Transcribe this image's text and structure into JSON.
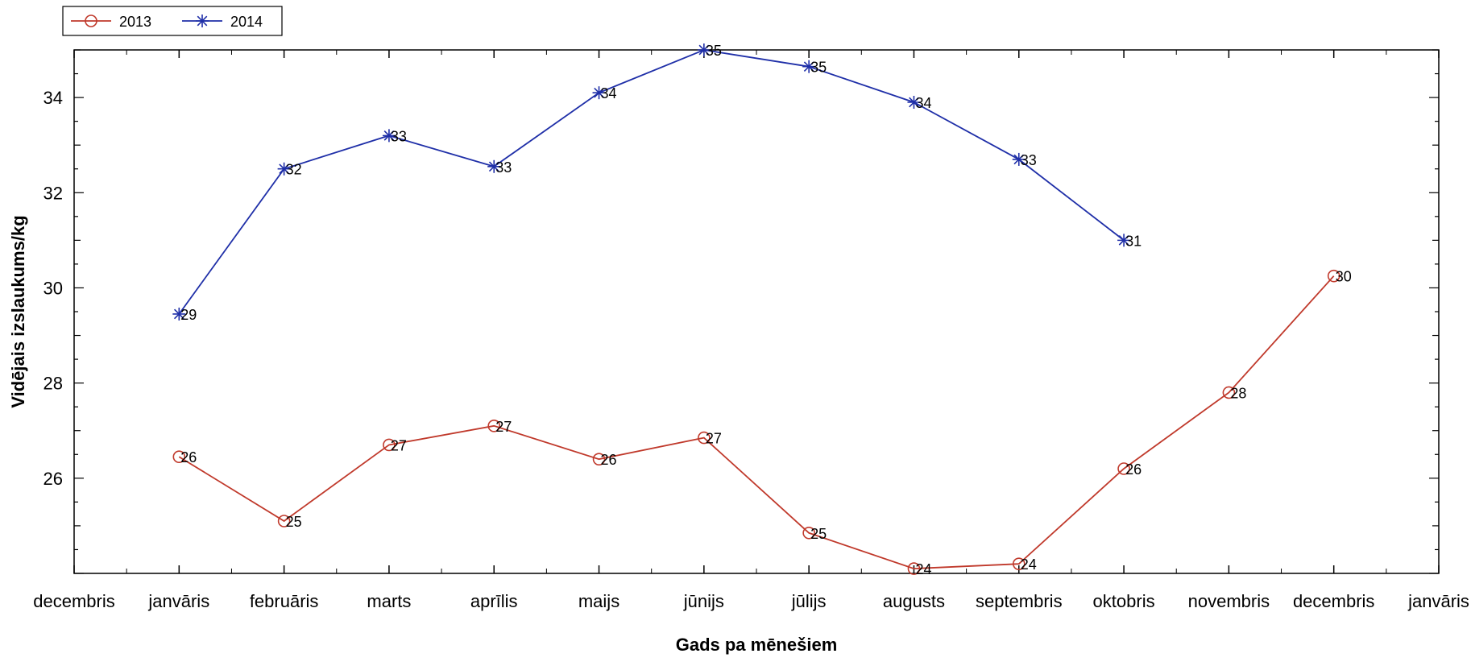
{
  "chart_data": {
    "type": "line",
    "xlabel": "Gads pa mēnešiem",
    "ylabel": "Vidējais izslaukums/kg",
    "x_ticks": [
      "decembris",
      "janvāris",
      "februāris",
      "marts",
      "aprīlis",
      "maijs",
      "jūnijs",
      "jūlijs",
      "augusts",
      "septembris",
      "oktobris",
      "novembris",
      "decembris",
      "janvāris"
    ],
    "ylim": [
      24,
      35
    ],
    "y_ticks": [
      26,
      28,
      30,
      32,
      34
    ],
    "grid": false,
    "legend": "top-left",
    "series": [
      {
        "name": "2013",
        "color": "#c0392b",
        "marker": "circle",
        "x": [
          "janvāris",
          "februāris",
          "marts",
          "aprīlis",
          "maijs",
          "jūnijs",
          "jūlijs",
          "augusts",
          "septembris",
          "oktobris",
          "novembris",
          "decembris"
        ],
        "values": [
          26.45,
          25.1,
          26.7,
          27.1,
          26.4,
          26.85,
          24.85,
          24.1,
          24.2,
          26.2,
          27.8,
          30.25
        ],
        "labels": [
          "26",
          "25",
          "27",
          "27",
          "26",
          "27",
          "25",
          "24",
          "24",
          "26",
          "28",
          "30"
        ]
      },
      {
        "name": "2014",
        "color": "#1f2fa8",
        "marker": "star",
        "x": [
          "janvāris",
          "februāris",
          "marts",
          "aprīlis",
          "maijs",
          "jūnijs",
          "jūlijs",
          "augusts",
          "septembris",
          "oktobris"
        ],
        "values": [
          29.45,
          32.5,
          33.2,
          32.55,
          34.1,
          35.0,
          34.65,
          33.9,
          32.7,
          31.0
        ],
        "labels": [
          "29",
          "32",
          "33",
          "33",
          "34",
          "35",
          "35",
          "34",
          "33",
          "31"
        ]
      }
    ]
  }
}
